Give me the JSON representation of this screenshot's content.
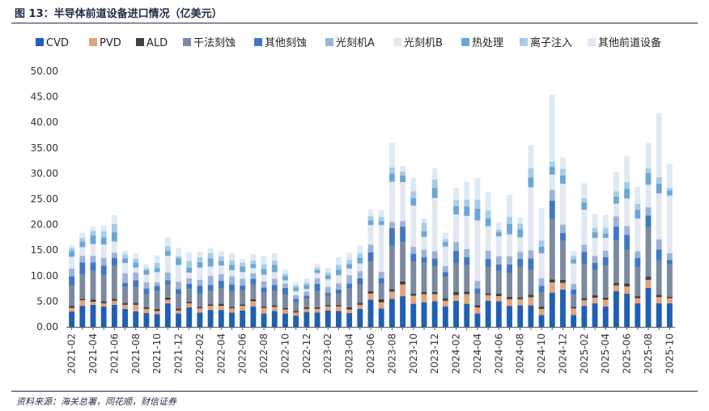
{
  "figure": {
    "title": "图 13：半导体前道设备进口情况（亿美元）",
    "source": "资料来源：海关总署，同花顺，财信证券"
  },
  "chart_data": {
    "type": "bar",
    "stacked": true,
    "title": "图 13：半导体前道设备进口情况（亿美元）",
    "xlabel": "",
    "ylabel": "",
    "ylim": [
      0,
      50
    ],
    "yticks": [
      "0.00",
      "5.00",
      "10.00",
      "15.00",
      "20.00",
      "25.00",
      "30.00",
      "35.00",
      "40.00",
      "45.00",
      "50.00"
    ],
    "legend_position": "top",
    "categories": [
      "2021-02",
      "2021-03",
      "2021-04",
      "2021-05",
      "2021-06",
      "2021-07",
      "2021-08",
      "2021-09",
      "2021-10",
      "2021-11",
      "2021-12",
      "2022-01",
      "2022-02",
      "2022-03",
      "2022-04",
      "2022-05",
      "2022-06",
      "2022-07",
      "2022-08",
      "2022-09",
      "2022-10",
      "2022-11",
      "2022-12",
      "2023-01",
      "2023-02",
      "2023-03",
      "2023-04",
      "2023-05",
      "2023-06",
      "2023-07",
      "2023-08",
      "2023-09",
      "2023-10",
      "2023-11",
      "2023-12",
      "2024-01",
      "2024-02",
      "2024-03",
      "2024-04",
      "2024-05",
      "2024-06",
      "2024-07",
      "2024-08",
      "2024-09",
      "2024-10",
      "2024-11",
      "2024-12",
      "2025-01",
      "2025-02",
      "2025-03",
      "2025-04",
      "2025-05",
      "2025-06",
      "2025-07",
      "2025-08",
      "2025-09",
      "2025-10"
    ],
    "xtick_labels": [
      "2021-02",
      "2021-04",
      "2021-06",
      "2021-08",
      "2021-10",
      "2021-12",
      "2022-02",
      "2022-04",
      "2022-06",
      "2022-08",
      "2022-10",
      "2022-12",
      "2023-02",
      "2023-04",
      "2023-06",
      "2023-08",
      "2023-10",
      "2023-12",
      "2024-02",
      "2024-04",
      "2024-06",
      "2024-08",
      "2024-10",
      "2024-12",
      "2025-02",
      "2025-04",
      "2025-06",
      "2025-08",
      "2025-10"
    ],
    "series": [
      {
        "name": "CVD",
        "color": "#1f5fb4",
        "values": [
          3.0,
          4.1,
          4.3,
          4.0,
          4.3,
          3.5,
          3.0,
          2.7,
          2.5,
          4.6,
          2.6,
          3.8,
          2.8,
          3.3,
          3.3,
          2.8,
          3.2,
          4.0,
          2.6,
          3.1,
          2.6,
          2.2,
          2.9,
          2.8,
          3.2,
          3.1,
          2.7,
          3.5,
          5.3,
          3.6,
          5.5,
          6.0,
          4.5,
          4.8,
          5.0,
          4.0,
          5.1,
          4.5,
          2.6,
          5.1,
          5.0,
          4.1,
          4.2,
          4.2,
          2.3,
          6.7,
          7.3,
          2.3,
          4.1,
          4.6,
          4.0,
          7.0,
          6.5,
          4.6,
          7.6,
          4.6,
          4.6
        ]
      },
      {
        "name": "PVD",
        "color": "#e2a47c",
        "values": [
          0.7,
          1.1,
          0.6,
          0.6,
          0.8,
          0.8,
          1.3,
          0.8,
          0.6,
          0.7,
          0.6,
          0.8,
          0.8,
          0.8,
          0.8,
          0.8,
          0.9,
          1.0,
          1.1,
          0.8,
          0.8,
          0.6,
          0.6,
          0.7,
          0.8,
          0.9,
          0.7,
          0.8,
          1.2,
          1.2,
          1.4,
          2.3,
          1.6,
          1.6,
          1.4,
          1.1,
          1.1,
          1.9,
          1.2,
          1.1,
          1.0,
          1.3,
          1.2,
          1.6,
          1.2,
          2.0,
          1.3,
          1.3,
          1.1,
          1.1,
          1.3,
          1.1,
          1.4,
          1.0,
          1.6,
          1.2,
          1.0
        ]
      },
      {
        "name": "ALD",
        "color": "#404040",
        "values": [
          0.4,
          0.3,
          0.4,
          0.4,
          0.4,
          0.4,
          0.4,
          0.3,
          0.4,
          0.4,
          0.4,
          0.3,
          0.3,
          0.3,
          0.4,
          0.3,
          0.3,
          0.4,
          0.3,
          0.3,
          0.3,
          0.3,
          0.3,
          0.3,
          0.3,
          0.3,
          0.4,
          0.4,
          0.5,
          0.6,
          0.5,
          0.6,
          0.4,
          0.4,
          0.4,
          0.5,
          0.6,
          0.5,
          0.4,
          0.4,
          0.5,
          0.5,
          0.4,
          0.5,
          0.5,
          0.6,
          0.6,
          0.3,
          0.4,
          0.5,
          0.4,
          0.5,
          0.6,
          0.4,
          0.6,
          0.5,
          0.3
        ]
      },
      {
        "name": "干法刻蚀",
        "color": "#7b8aa1",
        "values": [
          3.9,
          4.8,
          5.7,
          5.2,
          6.4,
          3.1,
          3.1,
          2.6,
          3.5,
          2.6,
          2.8,
          2.5,
          2.6,
          2.6,
          3.0,
          3.0,
          2.7,
          2.9,
          2.7,
          2.8,
          2.6,
          1.7,
          1.7,
          3.2,
          1.8,
          2.2,
          3.7,
          3.5,
          5.7,
          3.1,
          8.4,
          7.7,
          6.3,
          5.8,
          5.0,
          4.2,
          5.6,
          5.2,
          2.3,
          5.1,
          4.5,
          4.6,
          6.0,
          4.8,
          2.8,
          11.8,
          7.6,
          2.4,
          6.7,
          4.9,
          6.3,
          8.3,
          6.6,
          5.7,
          9.7,
          6.7,
          6.4
        ]
      },
      {
        "name": "其他刻蚀",
        "color": "#3f78c2",
        "values": [
          1.9,
          2.3,
          1.6,
          1.8,
          1.6,
          0.8,
          1.3,
          1.1,
          1.0,
          0.8,
          1.0,
          1.0,
          1.5,
          1.2,
          1.5,
          1.4,
          1.0,
          1.1,
          1.0,
          1.2,
          1.3,
          0.7,
          0.6,
          1.4,
          0.6,
          0.8,
          1.0,
          1.3,
          1.9,
          1.0,
          3.5,
          3.0,
          1.5,
          1.0,
          1.6,
          0.9,
          2.4,
          1.5,
          1.0,
          1.6,
          1.2,
          1.7,
          1.5,
          2.3,
          1.2,
          3.6,
          1.6,
          1.0,
          2.4,
          1.4,
          1.6,
          2.7,
          2.9,
          1.8,
          2.3,
          2.1,
          0.8
        ]
      },
      {
        "name": "光刻机A",
        "color": "#9db3d9",
        "values": [
          1.5,
          1.3,
          1.3,
          1.5,
          1.0,
          1.9,
          1.5,
          1.2,
          0.7,
          1.5,
          1.4,
          1.1,
          1.2,
          1.8,
          1.3,
          1.6,
          1.3,
          1.1,
          1.2,
          1.2,
          0.9,
          0.7,
          0.8,
          1.1,
          1.1,
          1.2,
          1.6,
          1.4,
          1.5,
          1.3,
          1.2,
          1.1,
          1.4,
          1.5,
          1.4,
          1.2,
          1.8,
          1.6,
          1.5,
          1.6,
          1.6,
          1.6,
          1.4,
          1.6,
          1.5,
          2.1,
          1.6,
          1.1,
          1.4,
          1.4,
          1.3,
          2.0,
          1.7,
          1.3,
          1.6,
          2.0,
          1.3
        ]
      },
      {
        "name": "光刻机B",
        "color": "#e2e7f0",
        "values": [
          2.3,
          1.7,
          2.3,
          2.6,
          2.2,
          2.0,
          1.0,
          1.5,
          2.0,
          3.3,
          3.3,
          1.1,
          2.4,
          1.8,
          1.7,
          1.2,
          1.3,
          1.0,
          1.3,
          1.3,
          0.6,
          0.8,
          0.5,
          1.0,
          1.5,
          1.6,
          1.3,
          1.5,
          3.8,
          9.1,
          7.9,
          7.6,
          8.0,
          2.5,
          10.4,
          3.8,
          5.4,
          6.5,
          11.8,
          4.8,
          3.9,
          4.3,
          2.8,
          12.3,
          4.9,
          3.0,
          8.0,
          4.0,
          6.8,
          3.5,
          2.5,
          2.5,
          5.4,
          6.4,
          4.4,
          9.0,
          11.3
        ]
      },
      {
        "name": "热处理",
        "color": "#6aa6d6",
        "values": [
          1.1,
          1.1,
          1.7,
          1.4,
          1.8,
          0.9,
          1.0,
          0.9,
          0.8,
          0.9,
          1.3,
          1.0,
          1.1,
          1.6,
          0.9,
          1.0,
          1.1,
          0.8,
          1.1,
          1.4,
          0.8,
          0.7,
          0.8,
          0.6,
          0.8,
          1.1,
          0.9,
          1.1,
          0.9,
          0.8,
          1.6,
          1.3,
          1.5,
          1.1,
          2.0,
          0.9,
          1.6,
          1.9,
          2.3,
          1.5,
          0.8,
          2.0,
          1.6,
          1.9,
          1.3,
          1.5,
          1.6,
          0.8,
          1.4,
          1.1,
          0.9,
          1.4,
          1.9,
          1.7,
          2.3,
          1.9,
          1.0
        ]
      },
      {
        "name": "离子注入",
        "color": "#a6cde6",
        "values": [
          0.6,
          0.7,
          0.9,
          1.2,
          1.6,
          0.8,
          0.7,
          0.4,
          1.0,
          1.0,
          0.4,
          1.3,
          0.9,
          1.0,
          0.9,
          0.9,
          0.7,
          0.7,
          0.9,
          0.9,
          0.5,
          0.4,
          0.4,
          0.5,
          0.5,
          0.9,
          0.8,
          0.9,
          0.8,
          0.8,
          1.2,
          0.8,
          1.3,
          1.7,
          1.6,
          0.6,
          1.2,
          1.3,
          1.8,
          1.6,
          0.5,
          1.4,
          1.1,
          1.8,
          1.2,
          1.0,
          1.3,
          0.7,
          0.9,
          0.9,
          1.1,
          1.0,
          1.3,
          1.2,
          0.9,
          1.3,
          0.5
        ]
      },
      {
        "name": "其他前道设备",
        "color": "#dde9f5",
        "values": [
          0.6,
          1.0,
          0.8,
          1.1,
          1.7,
          0.7,
          1.0,
          0.7,
          1.5,
          1.8,
          1.6,
          1.6,
          1.1,
          1.0,
          1.0,
          1.5,
          0.8,
          1.2,
          1.7,
          1.4,
          0.8,
          0.6,
          0.9,
          0.7,
          0.9,
          1.5,
          1.4,
          1.5,
          1.4,
          1.3,
          4.8,
          1.1,
          2.7,
          0.8,
          2.2,
          1.2,
          2.4,
          3.5,
          4.2,
          3.5,
          1.4,
          4.3,
          1.1,
          4.5,
          6.4,
          13.1,
          2.2,
          0.9,
          2.9,
          2.6,
          2.5,
          3.8,
          5.1,
          3.3,
          5.0,
          12.5,
          4.7
        ]
      }
    ]
  }
}
